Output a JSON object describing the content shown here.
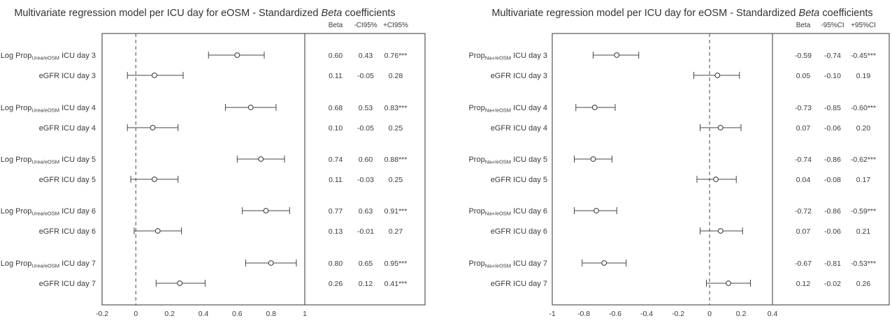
{
  "chart_data": [
    {
      "type": "forest",
      "title_pre": "Multivariate regression model per ICU day for eOSM - Standardized ",
      "title_em": "Beta",
      "title_post": " coefficients",
      "headers": [
        "Beta",
        "-CI95%",
        "+CI95%"
      ],
      "xlim": [
        -0.2,
        1.0
      ],
      "xticks": [
        "-0.2",
        "0",
        "0.2",
        "0.4",
        "0.6",
        "0.8",
        "1"
      ],
      "xtick_values": [
        -0.2,
        0,
        0.2,
        0.4,
        0.6,
        0.8,
        1.0
      ],
      "reference_line": 0,
      "rows": [
        {
          "pre": "Log Prop",
          "sub": "Urea/eOSM",
          "post": " ICU day 3",
          "beta": 0.6,
          "lo": 0.43,
          "hi": 0.76,
          "t_beta": "0.60",
          "t_lo": "0.43",
          "t_hi": "0.76***"
        },
        {
          "pre": "eGFR ICU day 3",
          "sub": "",
          "post": "",
          "beta": 0.11,
          "lo": -0.05,
          "hi": 0.28,
          "t_beta": "0.11",
          "t_lo": "-0.05",
          "t_hi": "0.28"
        },
        {
          "pre": "Log Prop",
          "sub": "Urea/eOSM",
          "post": " ICU day 4",
          "beta": 0.68,
          "lo": 0.53,
          "hi": 0.83,
          "t_beta": "0.68",
          "t_lo": "0.53",
          "t_hi": "0.83***"
        },
        {
          "pre": "eGFR ICU day 4",
          "sub": "",
          "post": "",
          "beta": 0.1,
          "lo": -0.05,
          "hi": 0.25,
          "t_beta": "0.10",
          "t_lo": "-0.05",
          "t_hi": "0.25"
        },
        {
          "pre": "Log Prop",
          "sub": "Urea/eOSM",
          "post": " ICU day 5",
          "beta": 0.74,
          "lo": 0.6,
          "hi": 0.88,
          "t_beta": "0.74",
          "t_lo": "0.60",
          "t_hi": "0.88***"
        },
        {
          "pre": "eGFR ICU day 5",
          "sub": "",
          "post": "",
          "beta": 0.11,
          "lo": -0.03,
          "hi": 0.25,
          "t_beta": "0.11",
          "t_lo": "-0.03",
          "t_hi": "0.25"
        },
        {
          "pre": "Log Prop",
          "sub": "Urea/eOSM",
          "post": " ICU day 6",
          "beta": 0.77,
          "lo": 0.63,
          "hi": 0.91,
          "t_beta": "0.77",
          "t_lo": "0.63",
          "t_hi": "0.91***"
        },
        {
          "pre": "eGFR ICU day 6",
          "sub": "",
          "post": "",
          "beta": 0.13,
          "lo": -0.01,
          "hi": 0.27,
          "t_beta": "0.13",
          "t_lo": "-0.01",
          "t_hi": "0.27"
        },
        {
          "pre": "Log Prop",
          "sub": "Urea/eOSM",
          "post": " ICU day 7",
          "beta": 0.8,
          "lo": 0.65,
          "hi": 0.95,
          "t_beta": "0.80",
          "t_lo": "0.65",
          "t_hi": "0.95***"
        },
        {
          "pre": "eGFR ICU day 7",
          "sub": "",
          "post": "",
          "beta": 0.26,
          "lo": 0.12,
          "hi": 0.41,
          "t_beta": "0.26",
          "t_lo": "0.12",
          "t_hi": "0.41***"
        }
      ]
    },
    {
      "type": "forest",
      "title_pre": "Multivariate regression model per ICU day for eOSM - Standardized ",
      "title_em": "Beta",
      "title_post": " coefficients",
      "headers": [
        "Beta",
        "-95%CI",
        "+95%CI"
      ],
      "xlim": [
        -1.0,
        0.4
      ],
      "xticks": [
        "-1",
        "-0.8",
        "-0.6",
        "-0.4",
        "-0.2",
        "0",
        "0.2",
        "0.4"
      ],
      "xtick_values": [
        -1.0,
        -0.8,
        -0.6,
        -0.4,
        -0.2,
        0,
        0.2,
        0.4
      ],
      "reference_line": 0,
      "rows": [
        {
          "pre": "Prop",
          "sub": "Na+/eOSM",
          "post": " ICU day 3",
          "beta": -0.59,
          "lo": -0.74,
          "hi": -0.45,
          "t_beta": "-0.59",
          "t_lo": "-0.74",
          "t_hi": "-0.45***"
        },
        {
          "pre": "eGFR ICU day 3",
          "sub": "",
          "post": "",
          "beta": 0.05,
          "lo": -0.1,
          "hi": 0.19,
          "t_beta": "0.05",
          "t_lo": "-0.10",
          "t_hi": "0.19"
        },
        {
          "pre": "Prop",
          "sub": "Na+/eOSM",
          "post": " ICU day 4",
          "beta": -0.73,
          "lo": -0.85,
          "hi": -0.6,
          "t_beta": "-0.73",
          "t_lo": "-0.85",
          "t_hi": "-0.60***"
        },
        {
          "pre": "eGFR ICU day 4",
          "sub": "",
          "post": "",
          "beta": 0.07,
          "lo": -0.06,
          "hi": 0.2,
          "t_beta": "0.07",
          "t_lo": "-0.06",
          "t_hi": "0.20"
        },
        {
          "pre": "Prop",
          "sub": "Na+/eOSM",
          "post": " ICU day 5",
          "beta": -0.74,
          "lo": -0.86,
          "hi": -0.62,
          "t_beta": "-0.74",
          "t_lo": "-0.86",
          "t_hi": "-0.62***"
        },
        {
          "pre": "eGFR ICU day 5",
          "sub": "",
          "post": "",
          "beta": 0.04,
          "lo": -0.08,
          "hi": 0.17,
          "t_beta": "0.04",
          "t_lo": "-0.08",
          "t_hi": "0.17"
        },
        {
          "pre": "Prop",
          "sub": "Na+/eOSM",
          "post": " ICU day 6",
          "beta": -0.72,
          "lo": -0.86,
          "hi": -0.59,
          "t_beta": "-0.72",
          "t_lo": "-0.86",
          "t_hi": "-0.59***"
        },
        {
          "pre": "eGFR ICU day 6",
          "sub": "",
          "post": "",
          "beta": 0.07,
          "lo": -0.06,
          "hi": 0.21,
          "t_beta": "0.07",
          "t_lo": "-0.06",
          "t_hi": "0.21"
        },
        {
          "pre": "Prop",
          "sub": "Na+/eOSM",
          "post": " ICU day 7",
          "beta": -0.67,
          "lo": -0.81,
          "hi": -0.53,
          "t_beta": "-0.67",
          "t_lo": "-0.81",
          "t_hi": "-0.53***"
        },
        {
          "pre": "eGFR ICU day 7",
          "sub": "",
          "post": "",
          "beta": 0.12,
          "lo": -0.02,
          "hi": 0.26,
          "t_beta": "0.12",
          "t_lo": "-0.02",
          "t_hi": "0.26"
        }
      ]
    }
  ]
}
